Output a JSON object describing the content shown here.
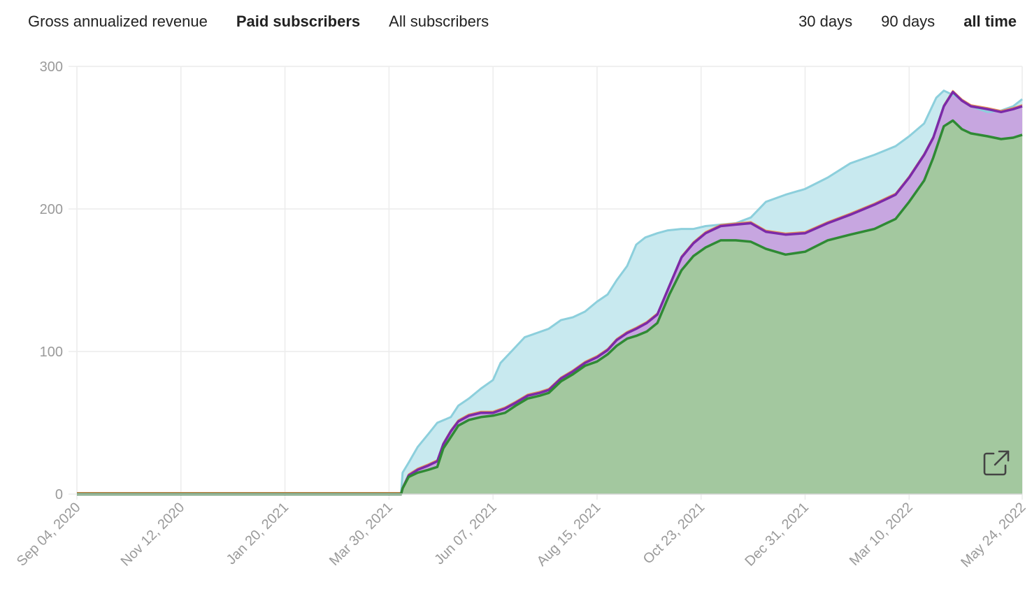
{
  "metric_tabs": [
    {
      "label": "Gross annualized revenue",
      "active": false
    },
    {
      "label": "Paid subscribers",
      "active": true
    },
    {
      "label": "All subscribers",
      "active": false
    }
  ],
  "range_tabs": [
    {
      "label": "30 days",
      "active": false
    },
    {
      "label": "90 days",
      "active": false
    },
    {
      "label": "all time",
      "active": true
    }
  ],
  "expand_icon": "external-link-icon",
  "colors": {
    "outer_line": "#8ccfdc",
    "outer_fill": "#c8e9ef",
    "mid_line": "#7b2aa8",
    "mid_fill": "#c7a6e0",
    "orange_line": "#e8925a",
    "inner_line": "#2f8a34",
    "inner_fill": "#a3c89f",
    "grid": "#ececec",
    "tick": "#9a9a9a"
  },
  "chart_data": {
    "type": "area",
    "x_type": "date",
    "xlim": [
      "2020-09-04",
      "2022-05-24"
    ],
    "ylim": [
      0,
      300
    ],
    "y_ticks": [
      0,
      100,
      200,
      300
    ],
    "x_ticks": [
      "Sep 04, 2020",
      "Nov 12, 2020",
      "Jan 20, 2021",
      "Mar 30, 2021",
      "Jun 07, 2021",
      "Aug 15, 2021",
      "Oct 23, 2021",
      "Dec 31, 2021",
      "Mar 10, 2022",
      "May 24, 2022"
    ],
    "x_tick_dates": [
      "2020-09-04",
      "2020-11-12",
      "2021-01-20",
      "2021-03-30",
      "2021-06-07",
      "2021-08-15",
      "2021-10-23",
      "2021-12-31",
      "2022-03-10",
      "2022-05-24"
    ],
    "grid": true,
    "series": [
      {
        "role": "outer",
        "points": [
          [
            "2020-09-04",
            0
          ],
          [
            "2021-04-07",
            0
          ],
          [
            "2021-04-08",
            15
          ],
          [
            "2021-04-12",
            22
          ],
          [
            "2021-04-18",
            33
          ],
          [
            "2021-04-25",
            42
          ],
          [
            "2021-05-01",
            50
          ],
          [
            "2021-05-10",
            54
          ],
          [
            "2021-05-15",
            62
          ],
          [
            "2021-05-22",
            67
          ],
          [
            "2021-05-30",
            74
          ],
          [
            "2021-06-07",
            80
          ],
          [
            "2021-06-12",
            92
          ],
          [
            "2021-06-20",
            101
          ],
          [
            "2021-06-28",
            110
          ],
          [
            "2021-07-06",
            113
          ],
          [
            "2021-07-14",
            116
          ],
          [
            "2021-07-22",
            122
          ],
          [
            "2021-07-30",
            124
          ],
          [
            "2021-08-07",
            128
          ],
          [
            "2021-08-15",
            135
          ],
          [
            "2021-08-22",
            140
          ],
          [
            "2021-08-28",
            150
          ],
          [
            "2021-09-04",
            160
          ],
          [
            "2021-09-10",
            175
          ],
          [
            "2021-09-16",
            180
          ],
          [
            "2021-09-24",
            183
          ],
          [
            "2021-10-01",
            185
          ],
          [
            "2021-10-10",
            186
          ],
          [
            "2021-10-18",
            186
          ],
          [
            "2021-10-26",
            188
          ],
          [
            "2021-11-05",
            189
          ],
          [
            "2021-11-15",
            190
          ],
          [
            "2021-11-25",
            194
          ],
          [
            "2021-12-05",
            205
          ],
          [
            "2021-12-18",
            210
          ],
          [
            "2021-12-31",
            214
          ],
          [
            "2022-01-15",
            222
          ],
          [
            "2022-01-30",
            232
          ],
          [
            "2022-02-15",
            238
          ],
          [
            "2022-03-01",
            244
          ],
          [
            "2022-03-10",
            251
          ],
          [
            "2022-03-20",
            260
          ],
          [
            "2022-03-28",
            278
          ],
          [
            "2022-04-02",
            283
          ],
          [
            "2022-04-10",
            279
          ],
          [
            "2022-04-20",
            272
          ],
          [
            "2022-05-01",
            268
          ],
          [
            "2022-05-10",
            269
          ],
          [
            "2022-05-18",
            272
          ],
          [
            "2022-05-24",
            277
          ]
        ]
      },
      {
        "role": "middle",
        "points": [
          [
            "2020-09-04",
            0
          ],
          [
            "2021-04-07",
            0
          ],
          [
            "2021-04-08",
            4
          ],
          [
            "2021-04-12",
            13
          ],
          [
            "2021-04-18",
            17
          ],
          [
            "2021-04-25",
            20
          ],
          [
            "2021-05-01",
            23
          ],
          [
            "2021-05-05",
            35
          ],
          [
            "2021-05-10",
            44
          ],
          [
            "2021-05-15",
            51
          ],
          [
            "2021-05-22",
            55
          ],
          [
            "2021-05-30",
            57
          ],
          [
            "2021-06-07",
            57
          ],
          [
            "2021-06-15",
            60
          ],
          [
            "2021-06-22",
            64
          ],
          [
            "2021-06-30",
            69
          ],
          [
            "2021-07-08",
            71
          ],
          [
            "2021-07-14",
            73
          ],
          [
            "2021-07-22",
            81
          ],
          [
            "2021-07-30",
            86
          ],
          [
            "2021-08-07",
            92
          ],
          [
            "2021-08-15",
            96
          ],
          [
            "2021-08-22",
            101
          ],
          [
            "2021-08-28",
            108
          ],
          [
            "2021-09-04",
            113
          ],
          [
            "2021-09-10",
            116
          ],
          [
            "2021-09-17",
            120
          ],
          [
            "2021-09-24",
            126
          ],
          [
            "2021-10-02",
            146
          ],
          [
            "2021-10-10",
            166
          ],
          [
            "2021-10-18",
            176
          ],
          [
            "2021-10-26",
            183
          ],
          [
            "2021-11-05",
            188
          ],
          [
            "2021-11-15",
            189
          ],
          [
            "2021-11-25",
            190
          ],
          [
            "2021-12-05",
            184
          ],
          [
            "2021-12-18",
            182
          ],
          [
            "2021-12-31",
            183
          ],
          [
            "2022-01-15",
            190
          ],
          [
            "2022-01-30",
            196
          ],
          [
            "2022-02-15",
            203
          ],
          [
            "2022-03-01",
            210
          ],
          [
            "2022-03-10",
            222
          ],
          [
            "2022-03-20",
            238
          ],
          [
            "2022-03-26",
            250
          ],
          [
            "2022-04-02",
            272
          ],
          [
            "2022-04-08",
            282
          ],
          [
            "2022-04-14",
            276
          ],
          [
            "2022-04-20",
            272
          ],
          [
            "2022-05-01",
            270
          ],
          [
            "2022-05-10",
            268
          ],
          [
            "2022-05-18",
            270
          ],
          [
            "2022-05-24",
            272
          ]
        ]
      },
      {
        "role": "inner",
        "points": [
          [
            "2020-09-04",
            0
          ],
          [
            "2021-04-07",
            0
          ],
          [
            "2021-04-08",
            4
          ],
          [
            "2021-04-12",
            12
          ],
          [
            "2021-04-18",
            15
          ],
          [
            "2021-04-25",
            17
          ],
          [
            "2021-05-01",
            19
          ],
          [
            "2021-05-05",
            32
          ],
          [
            "2021-05-10",
            40
          ],
          [
            "2021-05-15",
            48
          ],
          [
            "2021-05-22",
            52
          ],
          [
            "2021-05-30",
            54
          ],
          [
            "2021-06-07",
            55
          ],
          [
            "2021-06-15",
            57
          ],
          [
            "2021-06-22",
            62
          ],
          [
            "2021-06-30",
            67
          ],
          [
            "2021-07-08",
            69
          ],
          [
            "2021-07-14",
            71
          ],
          [
            "2021-07-22",
            79
          ],
          [
            "2021-07-30",
            84
          ],
          [
            "2021-08-07",
            90
          ],
          [
            "2021-08-15",
            93
          ],
          [
            "2021-08-22",
            98
          ],
          [
            "2021-08-28",
            104
          ],
          [
            "2021-09-04",
            109
          ],
          [
            "2021-09-10",
            111
          ],
          [
            "2021-09-17",
            114
          ],
          [
            "2021-09-24",
            120
          ],
          [
            "2021-10-02",
            140
          ],
          [
            "2021-10-10",
            157
          ],
          [
            "2021-10-18",
            167
          ],
          [
            "2021-10-26",
            173
          ],
          [
            "2021-11-05",
            178
          ],
          [
            "2021-11-15",
            178
          ],
          [
            "2021-11-25",
            177
          ],
          [
            "2021-12-05",
            172
          ],
          [
            "2021-12-18",
            168
          ],
          [
            "2021-12-31",
            170
          ],
          [
            "2022-01-15",
            178
          ],
          [
            "2022-01-30",
            182
          ],
          [
            "2022-02-15",
            186
          ],
          [
            "2022-03-01",
            193
          ],
          [
            "2022-03-10",
            205
          ],
          [
            "2022-03-20",
            220
          ],
          [
            "2022-03-26",
            236
          ],
          [
            "2022-04-02",
            258
          ],
          [
            "2022-04-08",
            262
          ],
          [
            "2022-04-14",
            256
          ],
          [
            "2022-04-20",
            253
          ],
          [
            "2022-05-01",
            251
          ],
          [
            "2022-05-10",
            249
          ],
          [
            "2022-05-18",
            250
          ],
          [
            "2022-05-24",
            252
          ]
        ]
      }
    ]
  }
}
